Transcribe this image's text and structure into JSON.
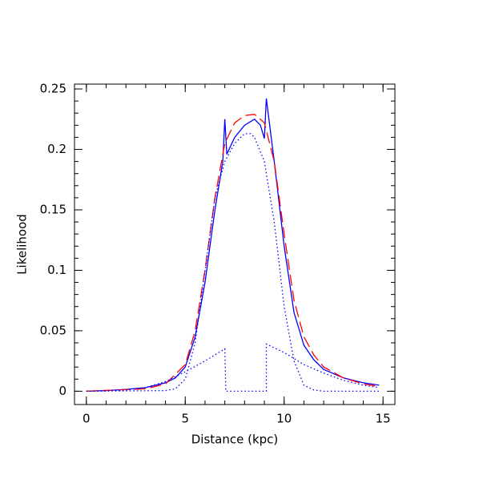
{
  "chart_data": {
    "type": "line",
    "xlabel": "Distance (kpc)",
    "ylabel": "Likelihood",
    "xlim": [
      -0.6,
      15.6
    ],
    "ylim": [
      -0.011,
      0.254
    ],
    "xticks": [
      0,
      5,
      10,
      15
    ],
    "yticks": [
      0,
      0.05,
      0.1,
      0.15,
      0.2,
      0.25
    ],
    "xminorticks": [
      0,
      1,
      2,
      3,
      4,
      5,
      6,
      7,
      8,
      9,
      10,
      11,
      12,
      13,
      14,
      15
    ],
    "yminorticks": [
      0,
      0.01,
      0.02,
      0.03,
      0.04,
      0.05,
      0.06,
      0.07,
      0.08,
      0.09,
      0.1,
      0.11,
      0.12,
      0.13,
      0.14,
      0.15,
      0.16,
      0.17,
      0.18,
      0.19,
      0.2,
      0.21,
      0.22,
      0.23,
      0.24,
      0.25
    ],
    "series": [
      {
        "color": "#0000ff",
        "linestyle": "solid",
        "x": [
          0,
          1,
          2,
          3,
          4,
          4.5,
          5,
          5.5,
          6,
          6.5,
          6.9,
          7.0,
          7.1,
          7.5,
          8,
          8.5,
          8.8,
          9.0,
          9.1,
          9.5,
          10,
          10.5,
          11,
          11.5,
          12,
          13,
          14,
          14.8
        ],
        "values": [
          0,
          0.0005,
          0.0015,
          0.003,
          0.007,
          0.011,
          0.02,
          0.045,
          0.09,
          0.15,
          0.19,
          0.225,
          0.196,
          0.21,
          0.22,
          0.225,
          0.22,
          0.209,
          0.242,
          0.19,
          0.12,
          0.065,
          0.038,
          0.026,
          0.018,
          0.011,
          0.007,
          0.005
        ]
      },
      {
        "color": "#ff0000",
        "linestyle": "dashed",
        "x": [
          0,
          3,
          4,
          5,
          5.5,
          6,
          6.5,
          7,
          7.5,
          8,
          8.5,
          9,
          9.5,
          10,
          10.5,
          11,
          11.5,
          12,
          13,
          14,
          14.8
        ],
        "values": [
          0,
          0.002,
          0.006,
          0.022,
          0.05,
          0.1,
          0.16,
          0.205,
          0.222,
          0.228,
          0.229,
          0.222,
          0.19,
          0.13,
          0.075,
          0.045,
          0.03,
          0.02,
          0.011,
          0.006,
          0.004
        ]
      },
      {
        "color": "#0000ff",
        "linestyle": "dotted",
        "x": [
          0,
          4,
          4.5,
          5,
          5.5,
          6,
          6.5,
          7,
          7.5,
          8,
          8.3,
          8.5,
          9,
          9.5,
          10,
          10.5,
          11,
          11.5,
          12,
          13,
          14.8
        ],
        "values": [
          0,
          0.0005,
          0.002,
          0.01,
          0.04,
          0.1,
          0.16,
          0.19,
          0.205,
          0.213,
          0.213,
          0.21,
          0.19,
          0.14,
          0.07,
          0.025,
          0.005,
          0.001,
          0,
          0,
          0
        ]
      },
      {
        "color": "#0000ff",
        "linestyle": "dotted",
        "x": [
          0,
          2,
          3,
          4,
          5,
          6,
          7.0,
          7.05,
          9.1,
          9.1,
          10,
          11,
          12,
          13,
          14,
          14.8
        ],
        "values": [
          0,
          0.001,
          0.003,
          0.008,
          0.016,
          0.025,
          0.035,
          0,
          0,
          0.039,
          0.032,
          0.022,
          0.015,
          0.009,
          0.005,
          0.003
        ]
      }
    ]
  }
}
